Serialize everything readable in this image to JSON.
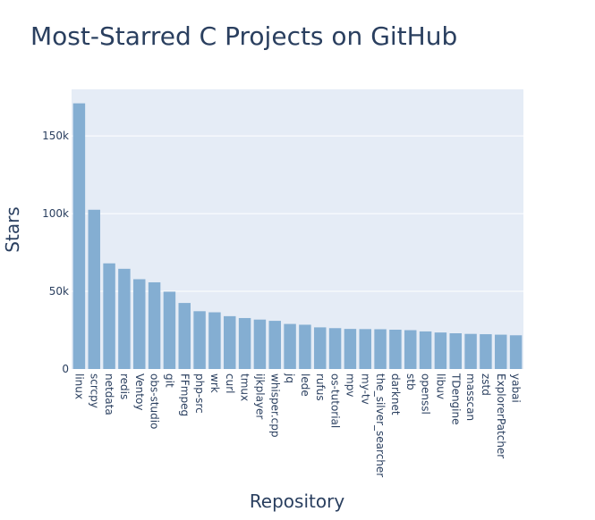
{
  "chart_data": {
    "type": "bar",
    "title": "Most-Starred C Projects on GitHub",
    "xlabel": "Repository",
    "ylabel": "Stars",
    "ylim": [
      0,
      180000
    ],
    "yticks": [
      0,
      50000,
      100000,
      150000
    ],
    "ytick_labels": [
      "0",
      "50k",
      "100k",
      "150k"
    ],
    "grid": true,
    "bar_color": "#84aed2",
    "plot_bg": "#e5ecf6",
    "categories": [
      "linux",
      "scrcpy",
      "netdata",
      "redis",
      "Ventoy",
      "obs-studio",
      "git",
      "FFmpeg",
      "php-src",
      "wrk",
      "curl",
      "tmux",
      "ijkplayer",
      "whisper.cpp",
      "jq",
      "lede",
      "rufus",
      "os-tutorial",
      "mpv",
      "my-tv",
      "the_silver_searcher",
      "darknet",
      "stb",
      "openssl",
      "libuv",
      "TDengine",
      "masscan",
      "zstd",
      "ExplorerPatcher",
      "yabai"
    ],
    "values": [
      171000,
      102500,
      68000,
      64500,
      57800,
      55800,
      49800,
      42500,
      37200,
      36500,
      34000,
      32800,
      31800,
      31000,
      29000,
      28500,
      26800,
      26300,
      25800,
      25700,
      25600,
      25300,
      25000,
      24200,
      23500,
      23000,
      22600,
      22400,
      22100,
      21700
    ]
  }
}
